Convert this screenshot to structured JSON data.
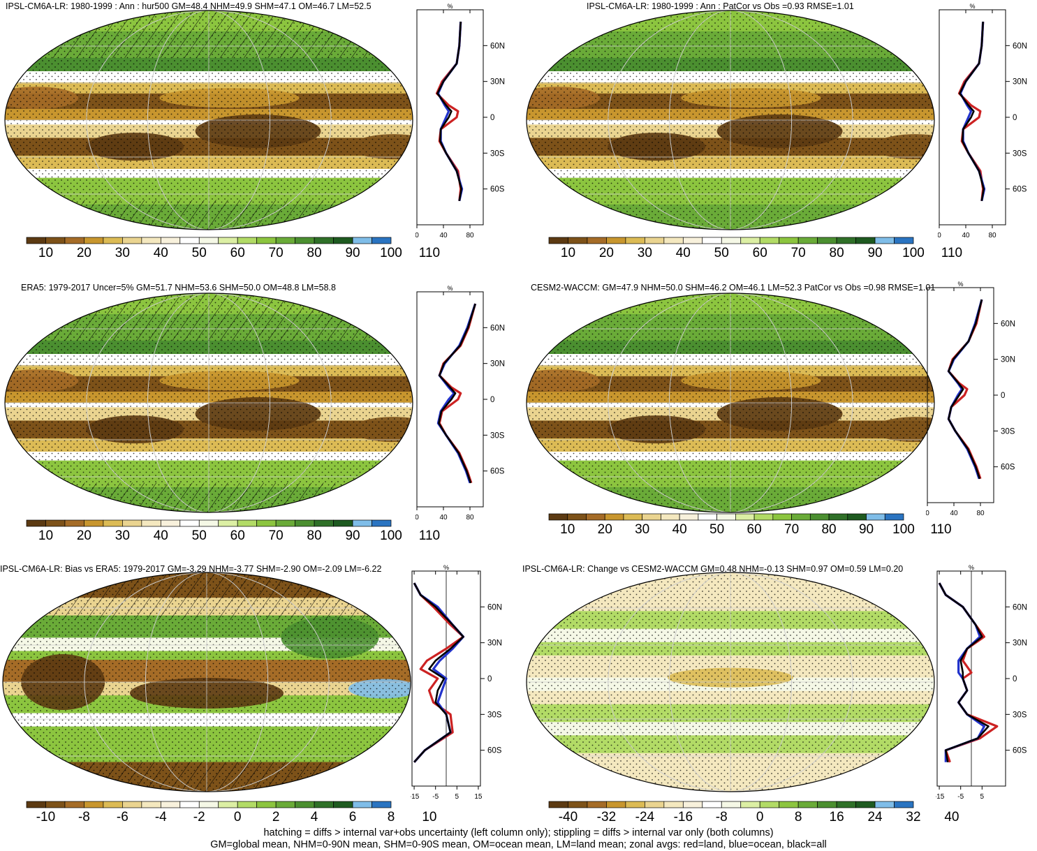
{
  "colors": {
    "scale": [
      "#5c3a12",
      "#7d5219",
      "#a56c27",
      "#c8962e",
      "#dcbb55",
      "#ead490",
      "#f4e8bf",
      "#f8f1dc",
      "#ffffff",
      "#f5f8e6",
      "#dcefa4",
      "#b2db66",
      "#8cc53f",
      "#6aab38",
      "#4b8f30",
      "#2f7028",
      "#1e5a20",
      "#7fbde8",
      "#2a74c1"
    ],
    "land": "#c22",
    "ocean": "#23c",
    "all": "#000"
  },
  "panels": [
    {
      "id": "p1",
      "title": "IPSL-CM6A-LR: 1980-1999 : Ann : hur500 GM=48.4 NHM=49.9 SHM=47.1 OM=46.7 LM=52.5",
      "cbar_labels": [
        "10",
        "20",
        "30",
        "40",
        "50",
        "60",
        "70",
        "80",
        "90",
        "100",
        "110"
      ],
      "prof_x_ticks": [
        "0",
        "40",
        "80"
      ],
      "prof_unit": "%",
      "prof_y_ticks": [
        "60N",
        "30N",
        "0",
        "30S",
        "60S"
      ],
      "kind": "abs",
      "hatch": true
    },
    {
      "id": "p2",
      "title": "IPSL-CM6A-LR: 1980-1999 : Ann : PatCor vs Obs =0.93 RMSE=1.01",
      "cbar_labels": [
        "10",
        "20",
        "30",
        "40",
        "50",
        "60",
        "70",
        "80",
        "90",
        "100",
        "110"
      ],
      "prof_x_ticks": [
        "0",
        "40",
        "80"
      ],
      "prof_unit": "%",
      "prof_y_ticks": [
        "60N",
        "30N",
        "0",
        "30S",
        "60S"
      ],
      "kind": "abs",
      "hatch": false
    },
    {
      "id": "p3",
      "title": "ERA5: 1979-2017 Uncer=5% GM=51.7 NHM=53.6 SHM=50.0 OM=48.8 LM=58.8",
      "cbar_labels": [
        "10",
        "20",
        "30",
        "40",
        "50",
        "60",
        "70",
        "80",
        "90",
        "100",
        "110"
      ],
      "prof_x_ticks": [
        "0",
        "40",
        "80"
      ],
      "prof_unit": "%",
      "prof_y_ticks": [
        "60N",
        "30N",
        "0",
        "30S",
        "60S"
      ],
      "kind": "abs",
      "hatch": true
    },
    {
      "id": "p4",
      "title": "CESM2-WACCM: GM=47.9 NHM=50.0 SHM=46.2 OM=46.1 LM=52.3 PatCor vs Obs =0.98 RMSE=1.01",
      "cbar_labels": [
        "10",
        "20",
        "30",
        "40",
        "50",
        "60",
        "70",
        "80",
        "90",
        "100",
        "110"
      ],
      "prof_x_ticks": [
        "0",
        "40",
        "80"
      ],
      "prof_unit": "%",
      "prof_y_ticks": [
        "60N",
        "30N",
        "0",
        "30S",
        "60S"
      ],
      "kind": "abs",
      "hatch": false
    },
    {
      "id": "p5",
      "title": "IPSL-CM6A-LR: Bias vs ERA5: 1979-2017 GM=-3.29 NHM=-3.77 SHM=-2.90 OM=-2.09 LM=-6.22",
      "cbar_labels": [
        "-10",
        "-8",
        "-6",
        "-4",
        "-2",
        "0",
        "2",
        "4",
        "6",
        "8",
        "10"
      ],
      "prof_x_ticks": [
        "-15",
        "-5",
        "5",
        "15"
      ],
      "prof_unit": "%",
      "prof_y_ticks": [
        "60N",
        "30N",
        "0",
        "30S",
        "60S"
      ],
      "kind": "bias",
      "hatch": true
    },
    {
      "id": "p6",
      "title": "IPSL-CM6A-LR: Change vs CESM2-WACCM GM=0.48 NHM=-0.13 SHM=0.97 OM=0.59 LM=0.20",
      "cbar_labels": [
        "-40",
        "-32",
        "-24",
        "-16",
        "-8",
        "0",
        "8",
        "16",
        "24",
        "32",
        "40"
      ],
      "prof_x_ticks": [
        "-15",
        "-5",
        "5"
      ],
      "prof_unit": "%",
      "prof_y_ticks": [
        "60N",
        "30N",
        "0",
        "30S",
        "60S"
      ],
      "kind": "change",
      "hatch": false
    }
  ],
  "footer": {
    "line1": "hatching = diffs > internal var+obs uncertainty (left column only); stippling = diffs > internal var only (both columns)",
    "line2": "GM=global mean, NHM=0-90N mean, SHM=0-90S mean, OM=ocean mean, LM=land mean; zonal avgs: red=land, blue=ocean, black=all"
  },
  "chart_data": [
    {
      "type": "heatmap",
      "title": "IPSL-CM6A-LR: 1980-1999 : Ann : hur500 GM=48.4 NHM=49.9 SHM=47.1 OM=46.7 LM=52.5",
      "colorbar": [
        10,
        20,
        30,
        40,
        50,
        60,
        70,
        80,
        90,
        100,
        110
      ],
      "zonal_avg": {
        "lat": [
          80,
          60,
          45,
          30,
          20,
          10,
          5,
          0,
          -10,
          -20,
          -30,
          -45,
          -60,
          -70
        ],
        "series": [
          {
            "name": "land",
            "values": [
              66,
              64,
              60,
              38,
              30,
              48,
              62,
              60,
              36,
              34,
              44,
              62,
              66,
              64
            ]
          },
          {
            "name": "ocean",
            "values": [
              66,
              64,
              60,
              40,
              32,
              42,
              48,
              44,
              36,
              36,
              44,
              60,
              68,
              64
            ]
          },
          {
            "name": "all",
            "values": [
              66,
              64,
              60,
              40,
              31,
              44,
              52,
              48,
              36,
              35,
              44,
              60,
              67,
              64
            ]
          }
        ]
      }
    },
    {
      "type": "heatmap",
      "title": "IPSL-CM6A-LR: 1980-1999 : Ann : PatCor vs Obs =0.93 RMSE=1.01",
      "colorbar": [
        10,
        20,
        30,
        40,
        50,
        60,
        70,
        80,
        90,
        100,
        110
      ],
      "zonal_avg": {
        "lat": [
          80,
          60,
          45,
          30,
          20,
          10,
          5,
          0,
          -10,
          -20,
          -30,
          -45,
          -60,
          -70
        ],
        "series": [
          {
            "name": "land",
            "values": [
              66,
              64,
              60,
              38,
              30,
              48,
              62,
              60,
              36,
              34,
              44,
              62,
              66,
              64
            ]
          },
          {
            "name": "ocean",
            "values": [
              66,
              64,
              60,
              40,
              32,
              42,
              48,
              44,
              36,
              36,
              44,
              60,
              68,
              64
            ]
          },
          {
            "name": "all",
            "values": [
              66,
              64,
              60,
              40,
              31,
              44,
              52,
              48,
              36,
              35,
              44,
              60,
              67,
              64
            ]
          }
        ]
      }
    },
    {
      "type": "heatmap",
      "title": "ERA5: 1979-2017 Uncer=5% GM=51.7 NHM=53.6 SHM=50.0 OM=48.8 LM=58.8",
      "colorbar": [
        10,
        20,
        30,
        40,
        50,
        60,
        70,
        80,
        90,
        100,
        110
      ],
      "zonal_avg": {
        "lat": [
          80,
          60,
          45,
          30,
          20,
          10,
          5,
          0,
          -10,
          -20,
          -30,
          -45,
          -60,
          -70
        ],
        "series": [
          {
            "name": "land",
            "values": [
              88,
              78,
              66,
              40,
              34,
              52,
              66,
              62,
              38,
              34,
              44,
              64,
              76,
              82
            ]
          },
          {
            "name": "ocean",
            "values": [
              88,
              76,
              64,
              42,
              34,
              48,
              56,
              48,
              36,
              32,
              44,
              62,
              74,
              80
            ]
          },
          {
            "name": "all",
            "values": [
              88,
              77,
              65,
              41,
              34,
              50,
              58,
              52,
              37,
              33,
              44,
              63,
              75,
              81
            ]
          }
        ]
      }
    },
    {
      "type": "heatmap",
      "title": "CESM2-WACCM: GM=47.9 NHM=50.0 SHM=46.2 OM=46.1 LM=52.3 PatCor vs Obs =0.98 RMSE=1.01",
      "colorbar": [
        10,
        20,
        30,
        40,
        50,
        60,
        70,
        80,
        90,
        100,
        110
      ],
      "zonal_avg": {
        "lat": [
          80,
          60,
          45,
          30,
          20,
          10,
          5,
          0,
          -10,
          -20,
          -30,
          -45,
          -60,
          -70
        ],
        "series": [
          {
            "name": "land",
            "values": [
              82,
              74,
              62,
              38,
              32,
              48,
              60,
              56,
              36,
              32,
              42,
              62,
              74,
              80
            ]
          },
          {
            "name": "ocean",
            "values": [
              82,
              72,
              62,
              40,
              32,
              46,
              52,
              46,
              36,
              32,
              42,
              60,
              72,
              78
            ]
          },
          {
            "name": "all",
            "values": [
              82,
              73,
              62,
              39,
              32,
              47,
              54,
              48,
              36,
              32,
              42,
              61,
              73,
              79
            ]
          }
        ]
      }
    },
    {
      "type": "heatmap",
      "title": "IPSL-CM6A-LR: Bias vs ERA5: 1979-2017 GM=-3.29 NHM=-3.77 SHM=-2.90 OM=-2.09 LM=-6.22",
      "colorbar": [
        -10,
        -8,
        -6,
        -4,
        -2,
        0,
        2,
        4,
        6,
        8,
        10
      ],
      "zonal_avg": {
        "lat": [
          80,
          70,
          60,
          45,
          35,
          25,
          15,
          8,
          0,
          -10,
          -20,
          -30,
          -45,
          -60,
          -70
        ],
        "series": [
          {
            "name": "land",
            "values": [
              -15,
              -12,
              -6,
              2,
              8,
              0,
              -9,
              -12,
              -4,
              -8,
              -6,
              2,
              3,
              -10,
              -15
            ]
          },
          {
            "name": "ocean",
            "values": [
              -15,
              -12,
              -4,
              3,
              8,
              3,
              -3,
              -6,
              0,
              -2,
              -4,
              0,
              2,
              -10,
              -15
            ]
          },
          {
            "name": "all",
            "values": [
              -15,
              -12,
              -5,
              3,
              8,
              2,
              -5,
              -8,
              -1,
              -4,
              -5,
              0,
              2,
              -10,
              -15
            ]
          }
        ]
      }
    },
    {
      "type": "heatmap",
      "title": "IPSL-CM6A-LR: Change vs CESM2-WACCM GM=0.48 NHM=-0.13 SHM=0.97 OM=0.59 LM=0.20",
      "colorbar": [
        -40,
        -32,
        -24,
        -16,
        -8,
        0,
        8,
        16,
        24,
        32,
        40
      ],
      "zonal_avg": {
        "lat": [
          80,
          70,
          60,
          45,
          35,
          25,
          15,
          5,
          0,
          -10,
          -20,
          -30,
          -40,
          -50,
          -60,
          -70
        ],
        "series": [
          {
            "name": "land",
            "values": [
              -15,
              -12,
              -4,
              2,
              6,
              -2,
              -4,
              0,
              -4,
              -2,
              -6,
              -2,
              12,
              4,
              -12,
              -10
            ]
          },
          {
            "name": "ocean",
            "values": [
              -15,
              -12,
              -4,
              2,
              4,
              -2,
              -6,
              -6,
              -4,
              -2,
              -6,
              -2,
              6,
              3,
              -12,
              -12
            ]
          },
          {
            "name": "all",
            "values": [
              -15,
              -12,
              -4,
              2,
              5,
              -2,
              -5,
              -4,
              -4,
              -2,
              -6,
              -2,
              8,
              3,
              -12,
              -11
            ]
          }
        ]
      }
    }
  ]
}
